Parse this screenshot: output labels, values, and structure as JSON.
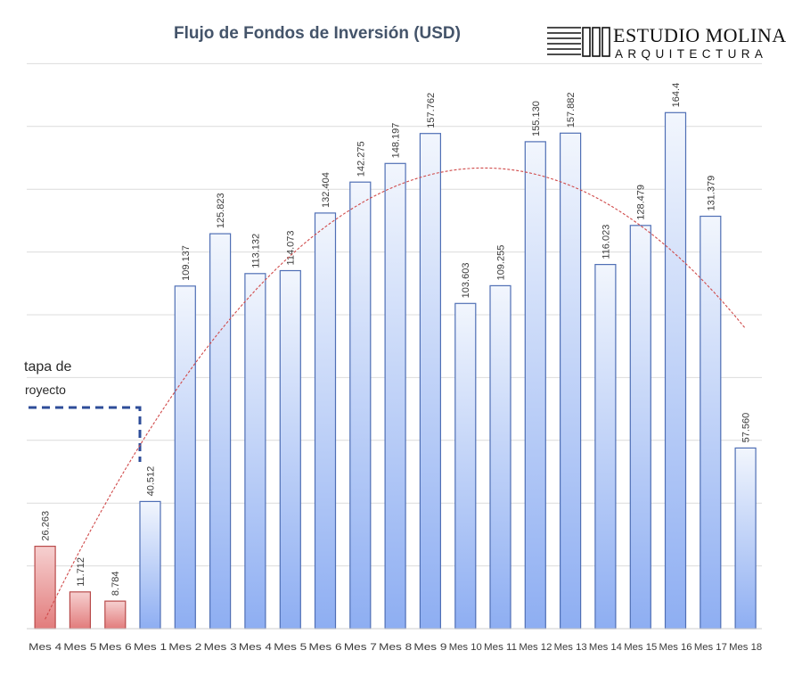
{
  "logo": {
    "name": "ESTUDIO MOLINA",
    "tagline": "ARQUITECTURA"
  },
  "annotation": {
    "line1": "tapa de",
    "line2": "royecto"
  },
  "colors": {
    "pre_bar_top": "#f6d0d0",
    "pre_bar_bottom": "#e27c7c",
    "pre_bar_stroke": "#b84a4a",
    "bar_top": "#f2f6fd",
    "bar_bottom": "#8eaef2",
    "bar_stroke": "#4f6fb5",
    "trend": "#d04a4a",
    "dash": "#2e4d99",
    "grid": "#dcdcdc"
  },
  "chart_data": {
    "type": "bar",
    "title": "Flujo de Fondos de Inversión (USD)",
    "xlabel": "",
    "ylabel": "",
    "ylim": [
      0,
      180
    ],
    "grid": true,
    "trendline": "polynomial",
    "categories": [
      "Mes 4",
      "Mes 5",
      "Mes 6",
      "Mes 1",
      "Mes 2",
      "Mes 3",
      "Mes 4",
      "Mes 5",
      "Mes 6",
      "Mes 7",
      "Mes 8",
      "Mes 9",
      "Mes 10",
      "Mes 11",
      "Mes 12",
      "Mes 13",
      "Mes 14",
      "Mes 15",
      "Mes 16",
      "Mes 17",
      "Mes 18"
    ],
    "values": [
      26.263,
      11.712,
      8.784,
      40.512,
      109.137,
      125.823,
      113.132,
      114.073,
      132.404,
      142.275,
      148.197,
      157.762,
      103.603,
      109.255,
      155.13,
      157.882,
      116.023,
      128.479,
      164.4,
      131.379,
      57.56
    ],
    "labels": [
      "26.263",
      "11.712",
      "8.784",
      "40.512",
      "109.137",
      "125.823",
      "113.132",
      "114.073",
      "132.404",
      "142.275",
      "148.197",
      "157.762",
      "103.603",
      "109.255",
      "155.130",
      "157.882",
      "116.023",
      "128.479",
      "164.4",
      "131.379",
      "57.560"
    ],
    "groups": [
      "pre",
      "pre",
      "pre",
      "main",
      "main",
      "main",
      "main",
      "main",
      "main",
      "main",
      "main",
      "main",
      "main",
      "main",
      "main",
      "main",
      "main",
      "main",
      "main",
      "main",
      "main"
    ]
  }
}
